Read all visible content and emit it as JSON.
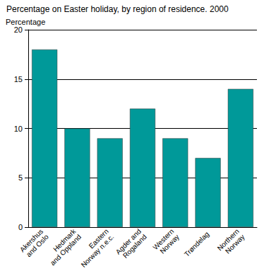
{
  "chart_data": {
    "type": "bar",
    "title": "Percentage on Easter holiday, by region of residence. 2000",
    "y_label": "Percentage",
    "categories": [
      "Akershus and Oslo",
      "Hedmark and Oppland",
      "Eastern Norway n.e.c.",
      "Agder and Rogaland",
      "Western Norway",
      "Trøndelag",
      "Northern Norway"
    ],
    "values": [
      18,
      10,
      9,
      12,
      9,
      7,
      14
    ],
    "color": "#009999",
    "ylim": [
      0,
      20
    ],
    "yticks": [
      0,
      5,
      10,
      15,
      20
    ],
    "grid": true
  }
}
